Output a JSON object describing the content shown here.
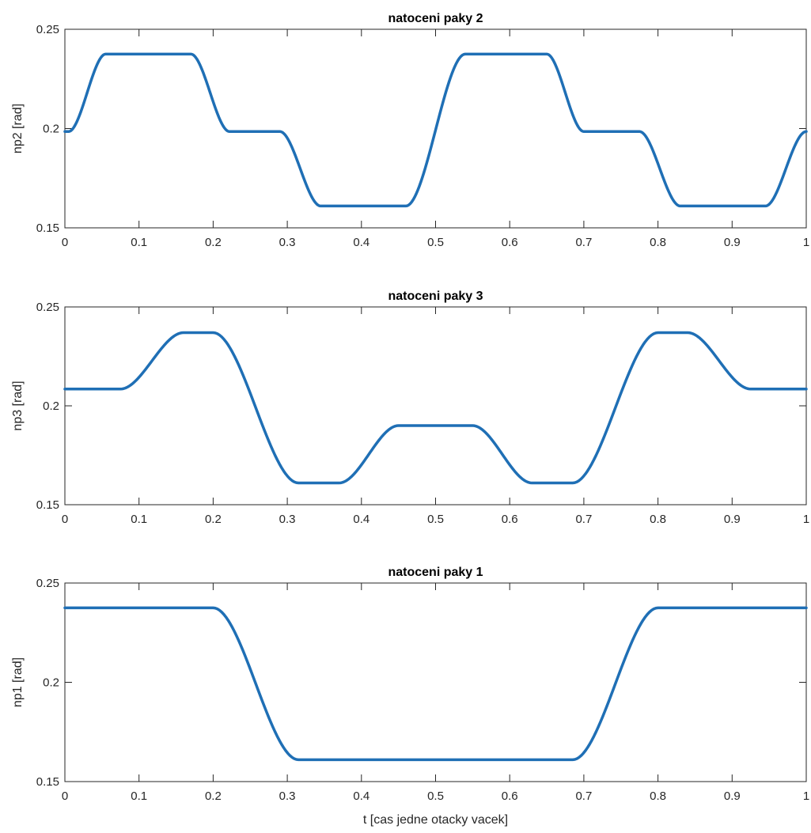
{
  "chart_data": [
    {
      "type": "line",
      "title": "natoceni paky 2",
      "xlabel": "",
      "ylabel": "np2 [rad]",
      "xlim": [
        0,
        1
      ],
      "ylim": [
        0.15,
        0.25
      ],
      "xticks": [
        "0",
        "0.1",
        "0.2",
        "0.3",
        "0.4",
        "0.5",
        "0.6",
        "0.7",
        "0.8",
        "0.9",
        "1"
      ],
      "yticks": [
        "0.15",
        "0.2",
        "0.25"
      ],
      "grid": false,
      "color": "#1f6fb5",
      "series": [
        {
          "x": [
            0,
            0.005,
            0.055,
            0.17,
            0.222,
            0.29,
            0.345,
            0.46,
            0.54,
            0.65,
            0.7,
            0.775,
            0.83,
            0.945,
            1.0
          ],
          "y": [
            0.1985,
            0.1985,
            0.2375,
            0.2375,
            0.1985,
            0.1985,
            0.161,
            0.161,
            0.2375,
            0.2375,
            0.1985,
            0.1985,
            0.161,
            0.161,
            0.1985
          ]
        }
      ]
    },
    {
      "type": "line",
      "title": "natoceni paky 3",
      "xlabel": "",
      "ylabel": "np3 [rad]",
      "xlim": [
        0,
        1
      ],
      "ylim": [
        0.15,
        0.25
      ],
      "xticks": [
        "0",
        "0.1",
        "0.2",
        "0.3",
        "0.4",
        "0.5",
        "0.6",
        "0.7",
        "0.8",
        "0.9",
        "1"
      ],
      "yticks": [
        "0.15",
        "0.2",
        "0.25"
      ],
      "grid": false,
      "color": "#1f6fb5",
      "series": [
        {
          "x": [
            0,
            0.075,
            0.16,
            0.2,
            0.315,
            0.37,
            0.45,
            0.55,
            0.63,
            0.685,
            0.8,
            0.84,
            0.925,
            1.0
          ],
          "y": [
            0.2085,
            0.2085,
            0.237,
            0.237,
            0.161,
            0.161,
            0.19,
            0.19,
            0.161,
            0.161,
            0.237,
            0.237,
            0.2085,
            0.2085
          ]
        }
      ]
    },
    {
      "type": "line",
      "title": "natoceni paky 1",
      "xlabel": "t [cas jedne otacky vacek]",
      "ylabel": "np1 [rad]",
      "xlim": [
        0,
        1
      ],
      "ylim": [
        0.15,
        0.25
      ],
      "xticks": [
        "0",
        "0.1",
        "0.2",
        "0.3",
        "0.4",
        "0.5",
        "0.6",
        "0.7",
        "0.8",
        "0.9",
        "1"
      ],
      "yticks": [
        "0.15",
        "0.2",
        "0.25"
      ],
      "grid": false,
      "color": "#1f6fb5",
      "series": [
        {
          "x": [
            0,
            0.2,
            0.315,
            0.685,
            0.8,
            1.0
          ],
          "y": [
            0.2375,
            0.2375,
            0.161,
            0.161,
            0.2375,
            0.2375
          ]
        }
      ]
    }
  ]
}
